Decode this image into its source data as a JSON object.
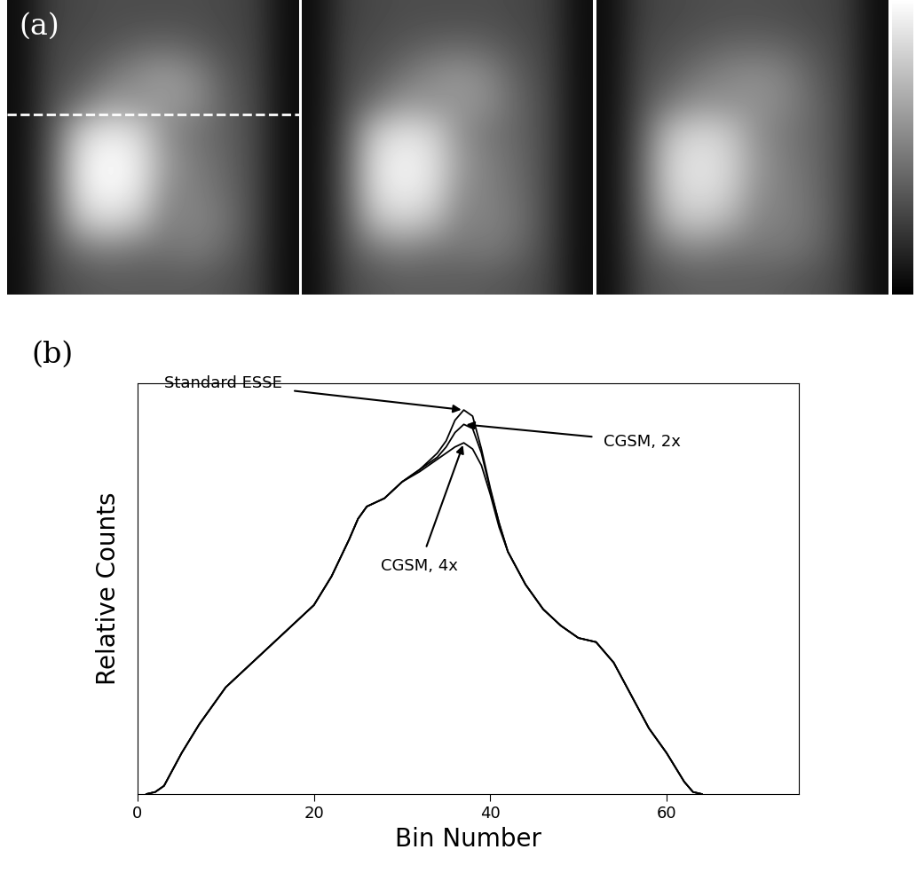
{
  "chart_data": [
    {
      "type": "image",
      "panel_label": "(a)",
      "tick_labels": false,
      "color": "gray",
      "profile_row": 3.9,
      "colorbar": {
        "range": [
          0,
          1
        ]
      },
      "images": [
        [
          [
            0.05,
            0.25,
            0.28,
            0.3,
            0.3,
            0.3,
            0.3,
            0.28,
            0.25,
            0.05
          ],
          [
            0.05,
            0.27,
            0.3,
            0.33,
            0.38,
            0.4,
            0.36,
            0.3,
            0.26,
            0.05
          ],
          [
            0.05,
            0.28,
            0.33,
            0.45,
            0.55,
            0.6,
            0.52,
            0.35,
            0.27,
            0.05
          ],
          [
            0.05,
            0.3,
            0.45,
            0.62,
            0.58,
            0.6,
            0.55,
            0.38,
            0.28,
            0.05
          ],
          [
            0.05,
            0.33,
            0.8,
            0.92,
            0.85,
            0.55,
            0.45,
            0.38,
            0.28,
            0.05
          ],
          [
            0.05,
            0.35,
            0.9,
            1.0,
            0.92,
            0.6,
            0.48,
            0.4,
            0.28,
            0.05
          ],
          [
            0.05,
            0.35,
            0.88,
            0.98,
            0.9,
            0.55,
            0.5,
            0.42,
            0.28,
            0.05
          ],
          [
            0.05,
            0.33,
            0.75,
            0.85,
            0.75,
            0.5,
            0.52,
            0.45,
            0.28,
            0.05
          ],
          [
            0.05,
            0.3,
            0.45,
            0.5,
            0.45,
            0.45,
            0.48,
            0.4,
            0.27,
            0.05
          ],
          [
            0.05,
            0.27,
            0.32,
            0.35,
            0.35,
            0.35,
            0.35,
            0.32,
            0.26,
            0.05
          ]
        ],
        [
          [
            0.05,
            0.25,
            0.28,
            0.3,
            0.3,
            0.3,
            0.3,
            0.28,
            0.25,
            0.05
          ],
          [
            0.05,
            0.27,
            0.3,
            0.34,
            0.38,
            0.4,
            0.37,
            0.31,
            0.26,
            0.05
          ],
          [
            0.05,
            0.28,
            0.34,
            0.45,
            0.54,
            0.58,
            0.51,
            0.36,
            0.27,
            0.05
          ],
          [
            0.05,
            0.3,
            0.46,
            0.6,
            0.58,
            0.59,
            0.54,
            0.39,
            0.28,
            0.05
          ],
          [
            0.05,
            0.34,
            0.78,
            0.89,
            0.83,
            0.56,
            0.46,
            0.39,
            0.28,
            0.05
          ],
          [
            0.05,
            0.36,
            0.87,
            0.96,
            0.89,
            0.6,
            0.49,
            0.41,
            0.28,
            0.05
          ],
          [
            0.05,
            0.36,
            0.85,
            0.94,
            0.87,
            0.56,
            0.5,
            0.42,
            0.28,
            0.05
          ],
          [
            0.05,
            0.34,
            0.73,
            0.82,
            0.73,
            0.51,
            0.51,
            0.44,
            0.28,
            0.05
          ],
          [
            0.05,
            0.31,
            0.46,
            0.51,
            0.46,
            0.46,
            0.47,
            0.4,
            0.27,
            0.05
          ],
          [
            0.05,
            0.27,
            0.33,
            0.36,
            0.36,
            0.36,
            0.35,
            0.32,
            0.26,
            0.05
          ]
        ],
        [
          [
            0.05,
            0.25,
            0.28,
            0.3,
            0.31,
            0.31,
            0.3,
            0.28,
            0.25,
            0.05
          ],
          [
            0.05,
            0.27,
            0.31,
            0.35,
            0.39,
            0.4,
            0.38,
            0.32,
            0.26,
            0.05
          ],
          [
            0.05,
            0.29,
            0.36,
            0.46,
            0.52,
            0.55,
            0.5,
            0.37,
            0.27,
            0.05
          ],
          [
            0.05,
            0.31,
            0.48,
            0.58,
            0.57,
            0.57,
            0.52,
            0.4,
            0.28,
            0.05
          ],
          [
            0.05,
            0.35,
            0.74,
            0.84,
            0.79,
            0.57,
            0.47,
            0.4,
            0.28,
            0.05
          ],
          [
            0.05,
            0.37,
            0.82,
            0.9,
            0.84,
            0.6,
            0.49,
            0.41,
            0.28,
            0.05
          ],
          [
            0.05,
            0.37,
            0.8,
            0.88,
            0.82,
            0.57,
            0.5,
            0.42,
            0.28,
            0.05
          ],
          [
            0.05,
            0.35,
            0.7,
            0.78,
            0.7,
            0.52,
            0.5,
            0.43,
            0.28,
            0.05
          ],
          [
            0.05,
            0.32,
            0.47,
            0.52,
            0.47,
            0.46,
            0.46,
            0.4,
            0.27,
            0.05
          ],
          [
            0.05,
            0.28,
            0.34,
            0.37,
            0.37,
            0.37,
            0.35,
            0.32,
            0.26,
            0.05
          ]
        ]
      ]
    },
    {
      "type": "line",
      "panel_label": "(b)",
      "x_label": "Bin Number",
      "y_label": "Relative Counts",
      "xlim": [
        0,
        75
      ],
      "xticks": [
        0,
        20,
        40,
        60
      ],
      "ylim": [
        0,
        1.0
      ],
      "tick_labels": "x",
      "x": [
        1,
        2,
        3,
        5,
        7,
        10,
        12,
        15,
        18,
        20,
        22,
        24,
        25,
        26,
        28,
        30,
        32,
        33,
        34,
        35,
        36,
        37,
        38,
        39,
        40,
        41,
        42,
        44,
        46,
        48,
        50,
        52,
        54,
        56,
        58,
        60,
        62,
        63,
        64
      ],
      "series": [
        {
          "name": "Standard ESSE",
          "color": "#000000",
          "values": [
            0,
            0.005,
            0.02,
            0.1,
            0.17,
            0.26,
            0.3,
            0.36,
            0.42,
            0.46,
            0.53,
            0.62,
            0.67,
            0.7,
            0.72,
            0.76,
            0.79,
            0.81,
            0.83,
            0.86,
            0.91,
            0.935,
            0.92,
            0.84,
            0.745,
            0.66,
            0.59,
            0.51,
            0.45,
            0.41,
            0.38,
            0.37,
            0.32,
            0.24,
            0.16,
            0.1,
            0.03,
            0.005,
            0
          ]
        },
        {
          "name": "CGSM, 2x",
          "color": "#000000",
          "values": [
            0,
            0.005,
            0.02,
            0.1,
            0.17,
            0.26,
            0.3,
            0.36,
            0.42,
            0.46,
            0.53,
            0.62,
            0.67,
            0.7,
            0.72,
            0.76,
            0.79,
            0.805,
            0.82,
            0.845,
            0.88,
            0.9,
            0.89,
            0.83,
            0.74,
            0.66,
            0.59,
            0.51,
            0.45,
            0.41,
            0.38,
            0.37,
            0.32,
            0.24,
            0.16,
            0.1,
            0.03,
            0.005,
            0
          ]
        },
        {
          "name": "CGSM, 4x",
          "color": "#000000",
          "values": [
            0,
            0.005,
            0.02,
            0.1,
            0.17,
            0.26,
            0.3,
            0.36,
            0.42,
            0.46,
            0.53,
            0.62,
            0.67,
            0.7,
            0.72,
            0.76,
            0.785,
            0.8,
            0.815,
            0.83,
            0.845,
            0.855,
            0.84,
            0.8,
            0.73,
            0.65,
            0.59,
            0.51,
            0.45,
            0.41,
            0.38,
            0.37,
            0.32,
            0.24,
            0.16,
            0.1,
            0.03,
            0.005,
            0
          ]
        }
      ]
    }
  ]
}
